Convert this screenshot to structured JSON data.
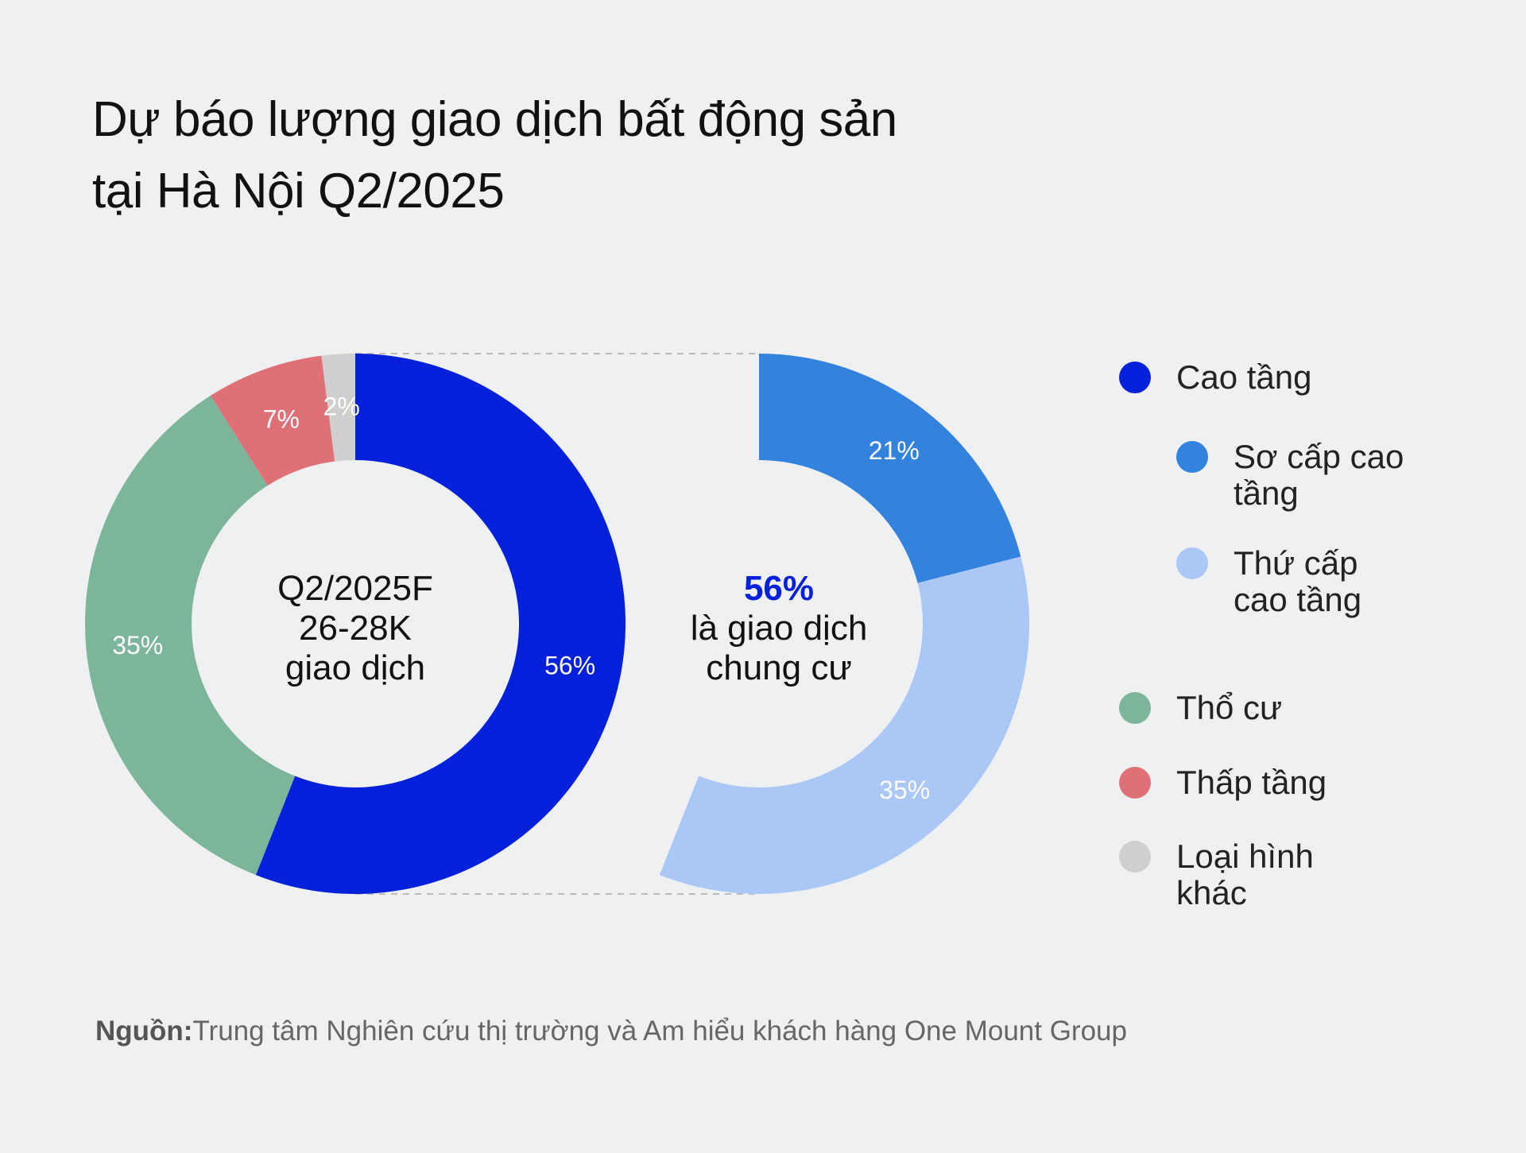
{
  "title_lines": [
    "Dự báo lượng giao dịch bất động sản",
    "tại Hà Nội Q2/2025"
  ],
  "source": {
    "label": "Nguồn:",
    "text": "Trung tâm Nghiên cứu thị trường và Am hiểu khách hàng One Mount Group"
  },
  "colors": {
    "cao_tang": "#0320da",
    "so_cap": "#3282de",
    "thu_cap": "#aac7f5",
    "tho_cu": "#7db59a",
    "thap_tang": "#e07078",
    "khac": "#cfcfcf"
  },
  "legend": [
    {
      "label": "Cao tầng",
      "color": "#0320da",
      "indent": false
    },
    {
      "label": "Sơ cấp cao tầng",
      "color": "#3282de",
      "indent": true
    },
    {
      "label": "Thứ cấp cao tầng",
      "color": "#aac7f5",
      "indent": true
    },
    {
      "label": "Thổ cư",
      "color": "#7db59a",
      "indent": false
    },
    {
      "label": "Thấp tầng",
      "color": "#e07078",
      "indent": false
    },
    {
      "label": "Loại hình khác",
      "color": "#cfcfcf",
      "indent": false
    }
  ],
  "chart_data": [
    {
      "type": "pie",
      "variant": "donut",
      "center_text": [
        "Q2/2025F",
        "26-28K",
        "giao dịch"
      ],
      "slices": [
        {
          "name": "Cao tầng",
          "value": 56,
          "label": "56%",
          "color": "#0320da"
        },
        {
          "name": "Thổ cư",
          "value": 35,
          "label": "35%",
          "color": "#7db59a"
        },
        {
          "name": "Thấp tầng",
          "value": 7,
          "label": "7%",
          "color": "#e07078"
        },
        {
          "name": "Loại hình khác",
          "value": 2,
          "label": "2%",
          "color": "#cfcfcf"
        }
      ]
    },
    {
      "type": "pie",
      "variant": "donut-breakdown",
      "center_highlight": "56%",
      "center_text": [
        "là giao dịch",
        "chung cư"
      ],
      "slices": [
        {
          "name": "Sơ cấp cao tầng",
          "value": 21,
          "label": "21%",
          "color": "#3282de"
        },
        {
          "name": "Thứ cấp cao tầng",
          "value": 35,
          "label": "35%",
          "color": "#aac7f5"
        }
      ]
    }
  ]
}
